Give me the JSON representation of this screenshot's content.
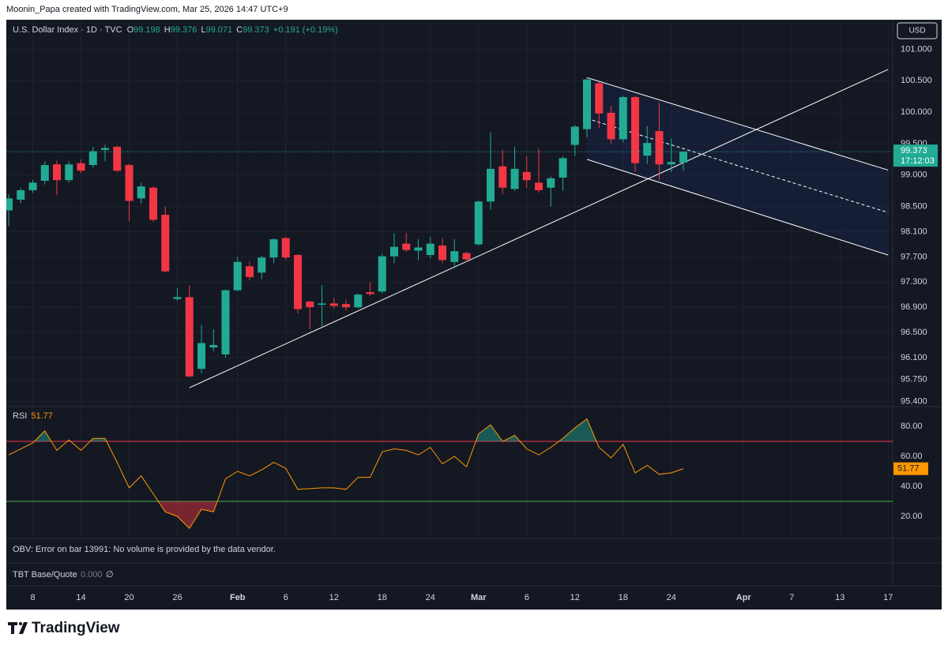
{
  "page": {
    "credit": "Moonin_Papa created with TradingView.com, Mar 25, 2026 14:47 UTC+9",
    "obv_text": "OBV: Error on bar 13991: No volume is provided by the data vendor.",
    "tbt_label": "TBT Base/Quote",
    "tbt_value": "0.000",
    "tbt_symbol": "∅",
    "logo": "TradingView"
  },
  "chart_data": [
    {
      "type": "candlestick",
      "title": "U.S. Dollar Index · 1D · TVC",
      "ohlc_letters": [
        "O",
        "H",
        "L",
        "C"
      ],
      "change_text": "+0.191 (+0.19%)",
      "currency": "USD",
      "countdown": "17:12:03",
      "up_color": "#22ab94",
      "down_color": "#f23645",
      "grid": true,
      "x": [
        "2026-01-06",
        "2026-01-07",
        "2026-01-08",
        "2026-01-09",
        "2026-01-12",
        "2026-01-13",
        "2026-01-14",
        "2026-01-15",
        "2026-01-16",
        "2026-01-19",
        "2026-01-20",
        "2026-01-21",
        "2026-01-22",
        "2026-01-23",
        "2026-01-26",
        "2026-01-27",
        "2026-01-28",
        "2026-01-29",
        "2026-01-30",
        "2026-02-02",
        "2026-02-03",
        "2026-02-04",
        "2026-02-05",
        "2026-02-06",
        "2026-02-09",
        "2026-02-10",
        "2026-02-11",
        "2026-02-12",
        "2026-02-13",
        "2026-02-16",
        "2026-02-17",
        "2026-02-18",
        "2026-02-19",
        "2026-02-20",
        "2026-02-23",
        "2026-02-24",
        "2026-02-25",
        "2026-02-26",
        "2026-02-27",
        "2026-03-02",
        "2026-03-03",
        "2026-03-04",
        "2026-03-05",
        "2026-03-06",
        "2026-03-09",
        "2026-03-10",
        "2026-03-11",
        "2026-03-12",
        "2026-03-13",
        "2026-03-16",
        "2026-03-17",
        "2026-03-18",
        "2026-03-19",
        "2026-03-20",
        "2026-03-23",
        "2026-03-24",
        "2026-03-25"
      ],
      "open": [
        98.44,
        98.61,
        98.76,
        98.91,
        99.17,
        98.92,
        99.19,
        99.16,
        99.4,
        99.45,
        99.16,
        98.63,
        98.8,
        98.37,
        97.03,
        97.06,
        95.92,
        96.26,
        96.15,
        97.17,
        97.55,
        97.45,
        97.69,
        98.0,
        97.73,
        96.99,
        96.94,
        96.96,
        96.95,
        96.9,
        97.14,
        97.15,
        97.71,
        97.91,
        97.8,
        97.73,
        97.88,
        97.62,
        97.76,
        97.9,
        98.58,
        99.14,
        98.78,
        99.05,
        98.88,
        98.8,
        98.96,
        99.48,
        99.73,
        100.46,
        99.99,
        99.57,
        100.24,
        99.31,
        99.7,
        99.17,
        99.198
      ],
      "high": [
        98.7,
        98.8,
        98.92,
        99.22,
        99.23,
        99.22,
        99.25,
        99.45,
        99.48,
        99.47,
        99.18,
        98.88,
        98.82,
        98.5,
        97.2,
        97.25,
        96.62,
        96.55,
        97.18,
        97.7,
        97.62,
        97.72,
        98.0,
        98.02,
        97.75,
        97.0,
        97.25,
        97.05,
        97.02,
        97.12,
        97.3,
        97.75,
        98.08,
        98.08,
        97.98,
        98.02,
        98.0,
        97.98,
        97.78,
        98.6,
        99.68,
        99.4,
        99.45,
        99.3,
        99.42,
        98.98,
        99.3,
        99.8,
        100.55,
        100.48,
        100.1,
        100.26,
        100.26,
        99.78,
        100.15,
        99.58,
        99.376
      ],
      "low": [
        98.19,
        98.55,
        98.72,
        98.85,
        98.68,
        98.88,
        99.03,
        99.12,
        99.22,
        99.05,
        98.27,
        98.55,
        98.25,
        97.45,
        97.0,
        95.78,
        95.85,
        96.2,
        96.1,
        97.15,
        97.33,
        97.35,
        97.6,
        97.65,
        96.8,
        96.55,
        96.6,
        96.88,
        96.85,
        96.88,
        97.08,
        97.12,
        97.6,
        97.78,
        97.65,
        97.68,
        97.6,
        97.52,
        97.62,
        97.88,
        98.45,
        98.7,
        98.75,
        98.8,
        98.72,
        98.5,
        98.75,
        99.3,
        99.6,
        99.75,
        99.5,
        99.52,
        99.05,
        99.18,
        98.92,
        99.05,
        99.071
      ],
      "close": [
        98.63,
        98.76,
        98.88,
        99.16,
        98.92,
        99.17,
        99.07,
        99.38,
        99.43,
        99.07,
        98.59,
        98.82,
        98.29,
        97.47,
        97.06,
        95.8,
        96.33,
        96.3,
        97.17,
        97.62,
        97.38,
        97.69,
        97.98,
        97.69,
        96.87,
        96.9,
        96.96,
        96.92,
        96.9,
        97.1,
        97.11,
        97.71,
        97.86,
        97.81,
        97.85,
        97.91,
        97.65,
        97.79,
        97.66,
        98.58,
        99.1,
        98.8,
        99.1,
        98.92,
        98.76,
        98.95,
        99.27,
        99.77,
        100.52,
        99.98,
        99.57,
        100.24,
        99.19,
        99.51,
        99.17,
        99.21,
        99.373
      ],
      "ylim": [
        95.32,
        101.47
      ],
      "yticks": [
        {
          "value": 101,
          "label": "101.000"
        },
        {
          "value": 100.5,
          "label": "100.500"
        },
        {
          "value": 100,
          "label": "100.000"
        },
        {
          "value": 99.5,
          "label": "99.500"
        },
        {
          "value": 99,
          "label": "99.000"
        },
        {
          "value": 98.5,
          "label": "98.500"
        },
        {
          "value": 98.1,
          "label": "98.100"
        },
        {
          "value": 97.7,
          "label": "97.700"
        },
        {
          "value": 97.3,
          "label": "97.300"
        },
        {
          "value": 96.9,
          "label": "96.900"
        },
        {
          "value": 96.5,
          "label": "96.500"
        },
        {
          "value": 96.1,
          "label": "96.100"
        },
        {
          "value": 95.75,
          "label": "95.750"
        },
        {
          "value": 95.4,
          "label": "95.400"
        }
      ],
      "xticks": [
        {
          "value": "2026-01-08",
          "label": "8"
        },
        {
          "value": "2026-01-14",
          "label": "14"
        },
        {
          "value": "2026-01-20",
          "label": "20"
        },
        {
          "value": "2026-01-26",
          "label": "26"
        },
        {
          "value": "2026-02-02",
          "label": "Feb"
        },
        {
          "value": "2026-02-06",
          "label": "6"
        },
        {
          "value": "2026-02-12",
          "label": "12"
        },
        {
          "value": "2026-02-18",
          "label": "18"
        },
        {
          "value": "2026-02-24",
          "label": "24"
        },
        {
          "value": "2026-03-02",
          "label": "Mar"
        },
        {
          "value": "2026-03-06",
          "label": "6"
        },
        {
          "value": "2026-03-12",
          "label": "12"
        },
        {
          "value": "2026-03-18",
          "label": "18"
        },
        {
          "value": "2026-03-24",
          "label": "24"
        },
        {
          "value": "2026-04-01",
          "label": "Apr"
        },
        {
          "value": "2026-04-07",
          "label": "7"
        },
        {
          "value": "2026-04-13",
          "label": "13"
        },
        {
          "value": "2026-04-17",
          "label": "17"
        }
      ],
      "trend_line": {
        "start": [
          "2026-01-27",
          95.62
        ],
        "end": [
          "2026-04-17",
          100.68
        ],
        "color": "#ffffff"
      },
      "channel": {
        "start": "2026-03-13",
        "end": "2026-04-17",
        "upper": [
          100.55,
          99.08
        ],
        "lower": [
          99.25,
          97.73
        ],
        "color": "#ffffff",
        "fill": "#2962ff"
      }
    },
    {
      "type": "line",
      "title": "RSI",
      "color": "#ff9800",
      "values": [
        61,
        65,
        69,
        77,
        64,
        71,
        64,
        72,
        72,
        56,
        39,
        47,
        35,
        23,
        20,
        12,
        24.7,
        23,
        45,
        50,
        47,
        51,
        56,
        52,
        38,
        38.5,
        39,
        39,
        38,
        46,
        46,
        63,
        65,
        64,
        61,
        66,
        55,
        60,
        53,
        75,
        81,
        70,
        74,
        65,
        61,
        66,
        72,
        79,
        85,
        66,
        59,
        68,
        49,
        54,
        48,
        49,
        51.77
      ],
      "ylim": [
        6.3,
        91.6
      ],
      "yticks": [
        {
          "value": 80,
          "label": "80.00"
        },
        {
          "value": 60,
          "label": "60.00"
        },
        {
          "value": 40,
          "label": "40.00"
        },
        {
          "value": 20,
          "label": "20.00"
        }
      ],
      "bands": {
        "upper": 70,
        "lower": 30,
        "upper_color": "#f23645",
        "lower_color": "#4caf50"
      }
    }
  ]
}
